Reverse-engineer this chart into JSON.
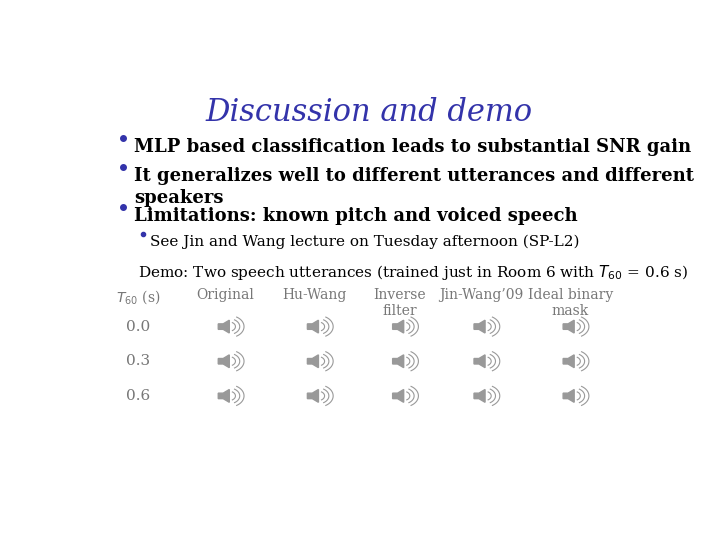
{
  "title": "Discussion and demo",
  "title_color": "#3333aa",
  "title_fontsize": 22,
  "background_color": "#ffffff",
  "bullet_color": "#3333aa",
  "bullet_fontsize": 13,
  "sub_bullet_fontsize": 11,
  "demo_fontsize": 11,
  "bullets": [
    "MLP based classification leads to substantial SNR gain",
    "It generalizes well to different utterances and different\nspeakers",
    "Limitations: known pitch and voiced speech"
  ],
  "sub_bullet": "See Jin and Wang lecture on Tuesday afternoon (SP-L2)",
  "demo_line_parts": [
    "Demo: Two speech utterances (trained just in Room 6 with ",
    " = 0.6 s)"
  ],
  "table_headers": [
    "$T_{60}$ (s)",
    "Original",
    "Hu-Wang",
    "Inverse\nfilter",
    "Jin-Wang’09",
    "Ideal binary\nmask"
  ],
  "table_rows": [
    "0.0",
    "0.3",
    "0.6"
  ],
  "table_header_fontsize": 10,
  "table_row_fontsize": 11,
  "text_color": "#000000",
  "gray_color": "#777777",
  "icon_color": "#999999"
}
